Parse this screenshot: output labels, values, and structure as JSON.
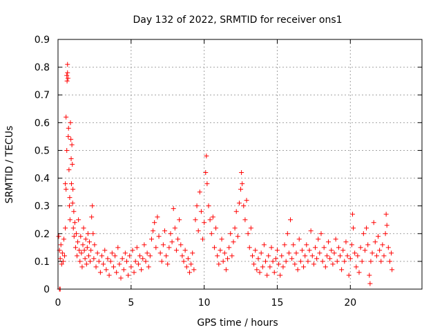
{
  "chart_data": {
    "type": "scatter",
    "title": "Day 132 of 2022, SRMTID for receiver ons1",
    "xlabel": "GPS time / hours",
    "ylabel": "SRMTID / TECUs",
    "xlim": [
      0,
      24.9
    ],
    "ylim": [
      0,
      0.9
    ],
    "x_ticks": [
      0,
      5,
      10,
      15,
      20
    ],
    "x_tick_labels": [
      "0",
      "5",
      "10",
      "15",
      "20"
    ],
    "y_ticks": [
      0,
      0.1,
      0.2,
      0.3,
      0.4,
      0.5,
      0.6,
      0.7,
      0.8,
      0.9
    ],
    "y_tick_labels": [
      "0",
      "0.1",
      "0.2",
      "0.3",
      "0.4",
      "0.5",
      "0.6",
      "0.7",
      "0.8",
      "0.9"
    ],
    "grid": true,
    "marker": "+",
    "color": "#ff0000",
    "series": [
      {
        "name": "SRMTID",
        "points": [
          [
            0.05,
            0.19
          ],
          [
            0.1,
            0.14
          ],
          [
            0.15,
            0.11
          ],
          [
            0.2,
            0.16
          ],
          [
            0.25,
            0.09
          ],
          [
            0.3,
            0.13
          ],
          [
            0.35,
            0.1
          ],
          [
            0.4,
            0.18
          ],
          [
            0.45,
            0.12
          ],
          [
            0.5,
            0.22
          ],
          [
            0.1,
            0.0
          ],
          [
            0.15,
            0.0
          ],
          [
            0.5,
            0.38
          ],
          [
            0.55,
            0.36
          ],
          [
            0.55,
            0.62
          ],
          [
            0.6,
            0.5
          ],
          [
            0.6,
            0.77
          ],
          [
            0.62,
            0.75
          ],
          [
            0.65,
            0.81
          ],
          [
            0.65,
            0.78
          ],
          [
            0.68,
            0.76
          ],
          [
            0.7,
            0.55
          ],
          [
            0.72,
            0.58
          ],
          [
            0.75,
            0.43
          ],
          [
            0.78,
            0.3
          ],
          [
            0.8,
            0.33
          ],
          [
            0.82,
            0.25
          ],
          [
            0.85,
            0.6
          ],
          [
            0.88,
            0.54
          ],
          [
            0.9,
            0.47
          ],
          [
            0.92,
            0.38
          ],
          [
            0.95,
            0.52
          ],
          [
            0.98,
            0.45
          ],
          [
            1.0,
            0.31
          ],
          [
            1.02,
            0.36
          ],
          [
            1.05,
            0.22
          ],
          [
            1.08,
            0.28
          ],
          [
            1.1,
            0.19
          ],
          [
            1.15,
            0.24
          ],
          [
            1.2,
            0.15
          ],
          [
            1.25,
            0.2
          ],
          [
            1.3,
            0.12
          ],
          [
            1.35,
            0.17
          ],
          [
            1.4,
            0.25
          ],
          [
            1.45,
            0.14
          ],
          [
            1.5,
            0.1
          ],
          [
            1.55,
            0.19
          ],
          [
            1.6,
            0.13
          ],
          [
            1.65,
            0.08
          ],
          [
            1.7,
            0.16
          ],
          [
            1.75,
            0.22
          ],
          [
            1.8,
            0.14
          ],
          [
            1.85,
            0.11
          ],
          [
            1.9,
            0.18
          ],
          [
            1.95,
            0.09
          ],
          [
            2.0,
            0.15
          ],
          [
            2.05,
            0.2
          ],
          [
            2.1,
            0.12
          ],
          [
            2.15,
            0.17
          ],
          [
            2.2,
            0.1
          ],
          [
            2.25,
            0.14
          ],
          [
            2.3,
            0.26
          ],
          [
            2.35,
            0.3
          ],
          [
            2.4,
            0.2
          ],
          [
            2.45,
            0.11
          ],
          [
            2.5,
            0.16
          ],
          [
            2.6,
            0.08
          ],
          [
            2.7,
            0.13
          ],
          [
            2.8,
            0.1
          ],
          [
            2.9,
            0.06
          ],
          [
            3.0,
            0.12
          ],
          [
            3.1,
            0.09
          ],
          [
            3.2,
            0.14
          ],
          [
            3.3,
            0.07
          ],
          [
            3.4,
            0.11
          ],
          [
            3.5,
            0.05
          ],
          [
            3.6,
            0.1
          ],
          [
            3.7,
            0.13
          ],
          [
            3.8,
            0.08
          ],
          [
            3.9,
            0.12
          ],
          [
            4.0,
            0.06
          ],
          [
            4.1,
            0.15
          ],
          [
            4.2,
            0.09
          ],
          [
            4.3,
            0.04
          ],
          [
            4.4,
            0.11
          ],
          [
            4.5,
            0.07
          ],
          [
            4.6,
            0.13
          ],
          [
            4.7,
            0.1
          ],
          [
            4.8,
            0.05
          ],
          [
            4.9,
            0.12
          ],
          [
            5.0,
            0.08
          ],
          [
            5.1,
            0.14
          ],
          [
            5.2,
            0.06
          ],
          [
            5.3,
            0.1
          ],
          [
            5.4,
            0.15
          ],
          [
            5.5,
            0.09
          ],
          [
            5.6,
            0.12
          ],
          [
            5.7,
            0.07
          ],
          [
            5.8,
            0.11
          ],
          [
            5.9,
            0.16
          ],
          [
            6.0,
            0.1
          ],
          [
            6.1,
            0.13
          ],
          [
            6.2,
            0.08
          ],
          [
            6.3,
            0.12
          ],
          [
            6.4,
            0.18
          ],
          [
            6.5,
            0.21
          ],
          [
            6.6,
            0.24
          ],
          [
            6.7,
            0.15
          ],
          [
            6.8,
            0.26
          ],
          [
            6.9,
            0.19
          ],
          [
            7.0,
            0.13
          ],
          [
            7.1,
            0.1
          ],
          [
            7.2,
            0.16
          ],
          [
            7.3,
            0.21
          ],
          [
            7.4,
            0.12
          ],
          [
            7.5,
            0.09
          ],
          [
            7.6,
            0.15
          ],
          [
            7.7,
            0.2
          ],
          [
            7.8,
            0.17
          ],
          [
            7.9,
            0.29
          ],
          [
            8.0,
            0.22
          ],
          [
            8.1,
            0.14
          ],
          [
            8.2,
            0.18
          ],
          [
            8.3,
            0.25
          ],
          [
            8.4,
            0.16
          ],
          [
            8.5,
            0.12
          ],
          [
            8.6,
            0.1
          ],
          [
            8.7,
            0.14
          ],
          [
            8.8,
            0.08
          ],
          [
            8.9,
            0.11
          ],
          [
            9.0,
            0.06
          ],
          [
            9.1,
            0.09
          ],
          [
            9.2,
            0.13
          ],
          [
            9.3,
            0.07
          ],
          [
            9.4,
            0.25
          ],
          [
            9.5,
            0.3
          ],
          [
            9.6,
            0.21
          ],
          [
            9.7,
            0.35
          ],
          [
            9.8,
            0.28
          ],
          [
            9.9,
            0.18
          ],
          [
            10.0,
            0.24
          ],
          [
            10.1,
            0.42
          ],
          [
            10.15,
            0.48
          ],
          [
            10.2,
            0.38
          ],
          [
            10.3,
            0.3
          ],
          [
            10.4,
            0.25
          ],
          [
            10.5,
            0.2
          ],
          [
            10.6,
            0.26
          ],
          [
            10.7,
            0.15
          ],
          [
            10.8,
            0.22
          ],
          [
            10.9,
            0.12
          ],
          [
            11.0,
            0.09
          ],
          [
            11.1,
            0.14
          ],
          [
            11.2,
            0.18
          ],
          [
            11.3,
            0.1
          ],
          [
            11.4,
            0.13
          ],
          [
            11.5,
            0.07
          ],
          [
            11.6,
            0.11
          ],
          [
            11.7,
            0.15
          ],
          [
            11.8,
            0.2
          ],
          [
            11.9,
            0.12
          ],
          [
            12.0,
            0.17
          ],
          [
            12.1,
            0.22
          ],
          [
            12.2,
            0.28
          ],
          [
            12.3,
            0.19
          ],
          [
            12.4,
            0.31
          ],
          [
            12.5,
            0.36
          ],
          [
            12.55,
            0.42
          ],
          [
            12.6,
            0.38
          ],
          [
            12.7,
            0.3
          ],
          [
            12.8,
            0.25
          ],
          [
            12.9,
            0.32
          ],
          [
            13.0,
            0.2
          ],
          [
            13.1,
            0.15
          ],
          [
            13.2,
            0.22
          ],
          [
            13.3,
            0.12
          ],
          [
            13.4,
            0.09
          ],
          [
            13.5,
            0.14
          ],
          [
            13.6,
            0.07
          ],
          [
            13.7,
            0.11
          ],
          [
            13.8,
            0.06
          ],
          [
            13.9,
            0.13
          ],
          [
            14.0,
            0.08
          ],
          [
            14.1,
            0.16
          ],
          [
            14.2,
            0.1
          ],
          [
            14.3,
            0.05
          ],
          [
            14.4,
            0.12
          ],
          [
            14.5,
            0.08
          ],
          [
            14.6,
            0.15
          ],
          [
            14.7,
            0.1
          ],
          [
            14.8,
            0.06
          ],
          [
            14.9,
            0.11
          ],
          [
            15.0,
            0.14
          ],
          [
            15.1,
            0.09
          ],
          [
            15.2,
            0.05
          ],
          [
            15.3,
            0.12
          ],
          [
            15.4,
            0.08
          ],
          [
            15.5,
            0.16
          ],
          [
            15.6,
            0.1
          ],
          [
            15.7,
            0.2
          ],
          [
            15.8,
            0.13
          ],
          [
            15.9,
            0.25
          ],
          [
            16.0,
            0.11
          ],
          [
            16.1,
            0.16
          ],
          [
            16.2,
            0.09
          ],
          [
            16.3,
            0.13
          ],
          [
            16.4,
            0.07
          ],
          [
            16.5,
            0.18
          ],
          [
            16.6,
            0.1
          ],
          [
            16.7,
            0.14
          ],
          [
            16.8,
            0.08
          ],
          [
            16.9,
            0.12
          ],
          [
            17.0,
            0.16
          ],
          [
            17.1,
            0.1
          ],
          [
            17.2,
            0.14
          ],
          [
            17.3,
            0.21
          ],
          [
            17.4,
            0.12
          ],
          [
            17.5,
            0.09
          ],
          [
            17.6,
            0.15
          ],
          [
            17.7,
            0.11
          ],
          [
            17.8,
            0.18
          ],
          [
            17.9,
            0.13
          ],
          [
            18.0,
            0.2
          ],
          [
            18.1,
            0.1
          ],
          [
            18.2,
            0.15
          ],
          [
            18.3,
            0.08
          ],
          [
            18.4,
            0.12
          ],
          [
            18.5,
            0.17
          ],
          [
            18.6,
            0.11
          ],
          [
            18.7,
            0.14
          ],
          [
            18.8,
            0.09
          ],
          [
            18.9,
            0.13
          ],
          [
            19.0,
            0.18
          ],
          [
            19.1,
            0.1
          ],
          [
            19.2,
            0.15
          ],
          [
            19.3,
            0.12
          ],
          [
            19.4,
            0.07
          ],
          [
            19.5,
            0.14
          ],
          [
            19.6,
            0.1
          ],
          [
            19.7,
            0.17
          ],
          [
            19.8,
            0.12
          ],
          [
            19.9,
            0.05
          ],
          [
            20.0,
            0.11
          ],
          [
            20.1,
            0.16
          ],
          [
            20.15,
            0.27
          ],
          [
            20.2,
            0.22
          ],
          [
            20.3,
            0.13
          ],
          [
            20.4,
            0.08
          ],
          [
            20.5,
            0.12
          ],
          [
            20.6,
            0.06
          ],
          [
            20.7,
            0.15
          ],
          [
            20.8,
            0.1
          ],
          [
            20.9,
            0.2
          ],
          [
            21.0,
            0.14
          ],
          [
            21.1,
            0.22
          ],
          [
            21.2,
            0.16
          ],
          [
            21.3,
            0.05
          ],
          [
            21.35,
            0.02
          ],
          [
            21.4,
            0.1
          ],
          [
            21.5,
            0.13
          ],
          [
            21.6,
            0.24
          ],
          [
            21.7,
            0.17
          ],
          [
            21.8,
            0.12
          ],
          [
            21.9,
            0.19
          ],
          [
            22.0,
            0.14
          ],
          [
            22.1,
            0.1
          ],
          [
            22.2,
            0.16
          ],
          [
            22.3,
            0.12
          ],
          [
            22.4,
            0.2
          ],
          [
            22.45,
            0.27
          ],
          [
            22.5,
            0.23
          ],
          [
            22.6,
            0.15
          ],
          [
            22.7,
            0.1
          ],
          [
            22.8,
            0.13
          ],
          [
            22.85,
            0.07
          ]
        ]
      }
    ]
  }
}
